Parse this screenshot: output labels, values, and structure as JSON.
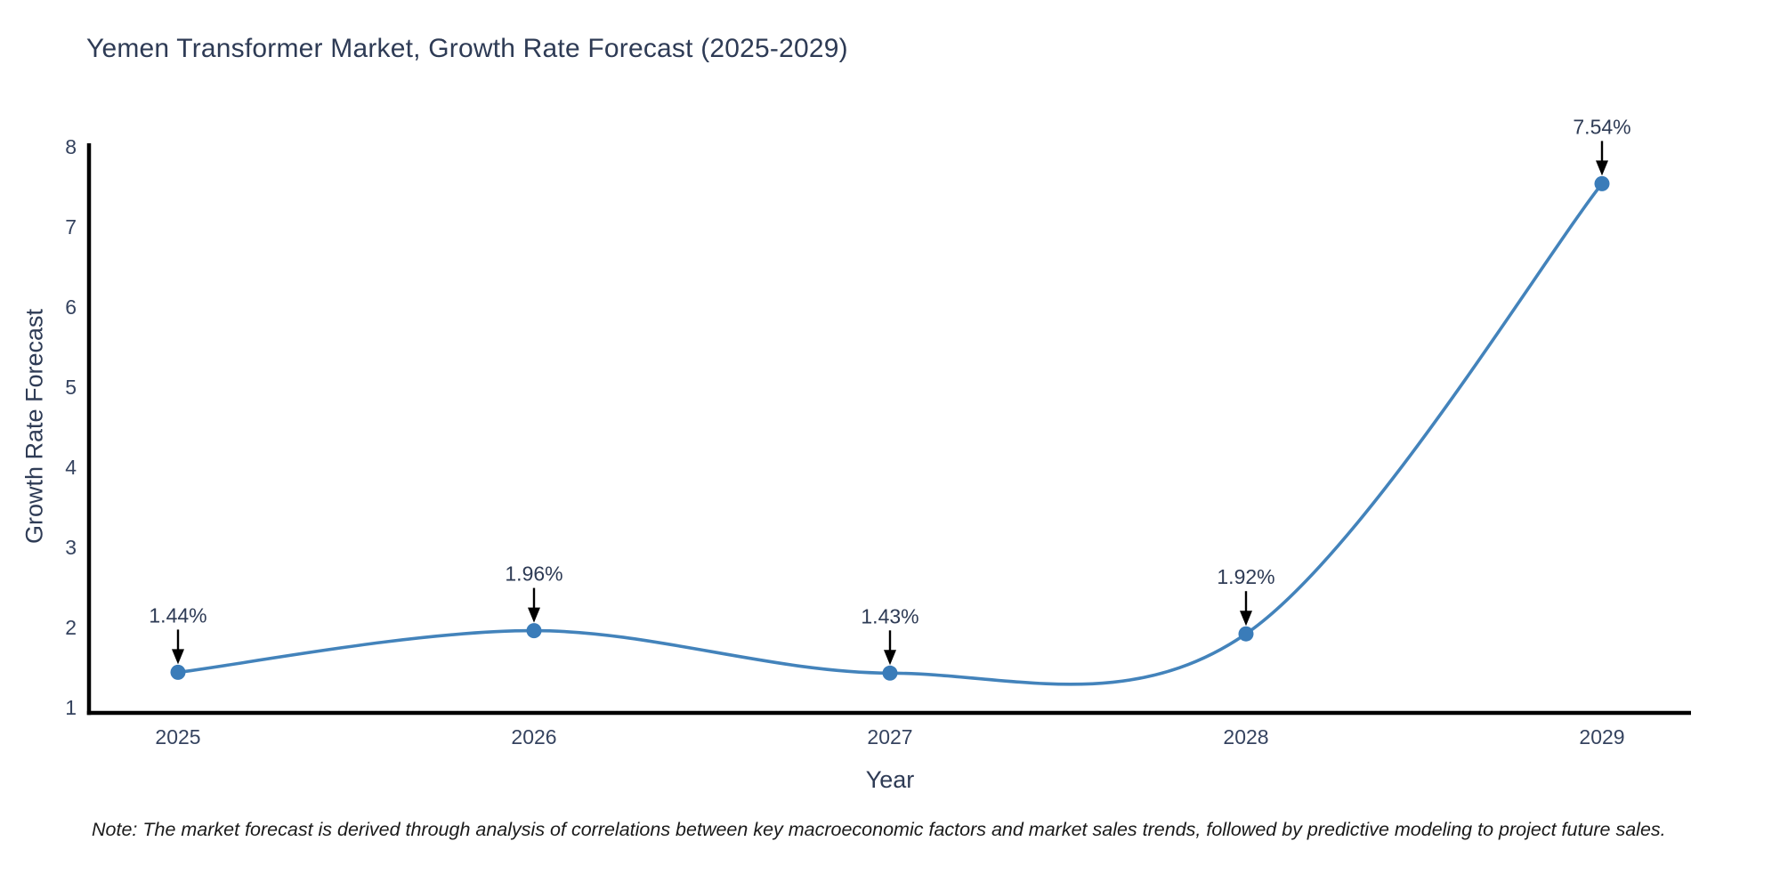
{
  "title": "Yemen Transformer Market, Growth Rate Forecast (2025-2029)",
  "note": "Note: The market forecast is derived through analysis of correlations between key macroeconomic factors and market sales trends, followed by predictive modeling to project future sales.",
  "chart_data": {
    "type": "line",
    "title": "Yemen Transformer Market, Growth Rate Forecast (2025-2029)",
    "xlabel": "Year",
    "ylabel": "Growth Rate Forecast",
    "x": [
      2025,
      2026,
      2027,
      2028,
      2029
    ],
    "values": [
      1.44,
      1.96,
      1.43,
      1.92,
      7.54
    ],
    "point_labels": [
      "1.44%",
      "1.96%",
      "1.43%",
      "1.92%",
      "7.54%"
    ],
    "xticks": [
      "2025",
      "2026",
      "2027",
      "2028",
      "2029"
    ],
    "yticks": [
      1,
      2,
      3,
      4,
      5,
      6,
      7,
      8
    ],
    "ylim": [
      1,
      8
    ],
    "grid": false,
    "legend": "none",
    "line_shape": "spline",
    "colors": {
      "line": "#4383bb",
      "marker": "#3a7cb9",
      "axis_line": "#000000",
      "tick_text": "#35435f",
      "annotation_text": "#2e3b55",
      "annotation_arrow": "#000000",
      "background": "#ffffff"
    }
  }
}
